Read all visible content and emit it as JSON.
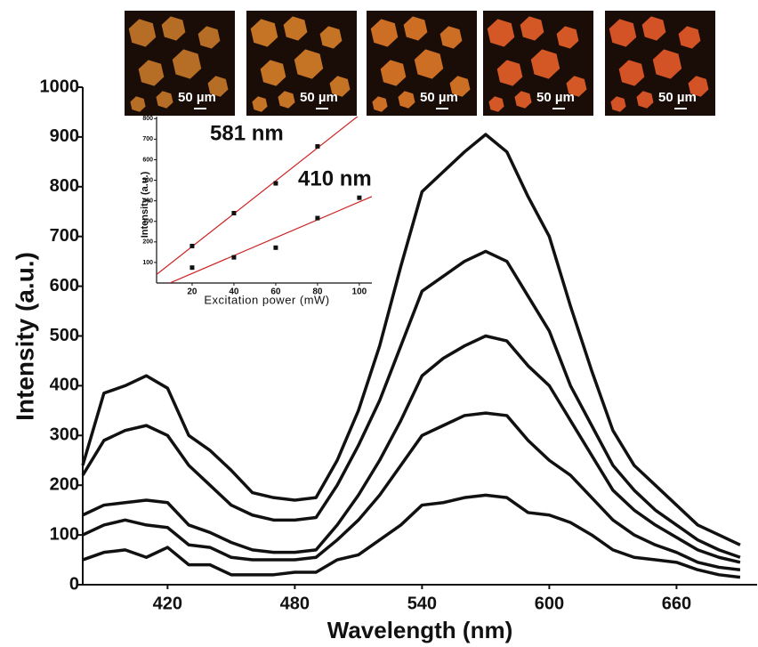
{
  "chart_data": [
    {
      "type": "line",
      "xlabel": "Wavelength (nm)",
      "ylabel": "Intensity (a.u.)",
      "x": [
        380,
        390,
        400,
        410,
        420,
        430,
        440,
        450,
        460,
        470,
        480,
        490,
        500,
        510,
        520,
        530,
        540,
        550,
        560,
        570,
        580,
        590,
        600,
        610,
        620,
        630,
        640,
        650,
        660,
        670,
        680,
        690
      ],
      "series": [
        {
          "color": "#111111",
          "values": [
            240,
            385,
            400,
            420,
            395,
            300,
            270,
            230,
            185,
            175,
            170,
            175,
            250,
            350,
            480,
            640,
            790,
            830,
            870,
            905,
            870,
            780,
            700,
            560,
            430,
            310,
            240,
            200,
            160,
            120,
            100,
            80
          ]
        },
        {
          "color": "#111111",
          "values": [
            220,
            290,
            310,
            320,
            300,
            240,
            200,
            160,
            140,
            130,
            130,
            135,
            200,
            280,
            370,
            480,
            590,
            620,
            650,
            670,
            650,
            580,
            510,
            400,
            320,
            240,
            190,
            150,
            120,
            90,
            70,
            55
          ]
        },
        {
          "color": "#111111",
          "values": [
            140,
            160,
            165,
            170,
            165,
            120,
            105,
            85,
            70,
            65,
            65,
            70,
            120,
            180,
            250,
            330,
            420,
            455,
            480,
            500,
            490,
            440,
            400,
            330,
            260,
            190,
            150,
            120,
            95,
            70,
            55,
            45
          ]
        },
        {
          "color": "#111111",
          "values": [
            100,
            120,
            130,
            120,
            115,
            80,
            75,
            55,
            50,
            50,
            50,
            55,
            90,
            130,
            180,
            240,
            300,
            320,
            340,
            345,
            340,
            290,
            250,
            220,
            175,
            130,
            100,
            80,
            65,
            45,
            35,
            30
          ]
        },
        {
          "color": "#111111",
          "values": [
            50,
            65,
            70,
            55,
            75,
            40,
            40,
            20,
            20,
            20,
            25,
            25,
            50,
            60,
            90,
            120,
            160,
            165,
            175,
            180,
            175,
            145,
            140,
            125,
            100,
            70,
            55,
            50,
            45,
            30,
            20,
            15
          ]
        }
      ],
      "xlim": [
        380,
        698
      ],
      "ylim": [
        0,
        1000
      ],
      "xticks": [
        420,
        480,
        540,
        600,
        660
      ],
      "yticks": [
        0,
        100,
        200,
        300,
        400,
        500,
        600,
        700,
        800,
        900,
        1000
      ]
    },
    {
      "type": "scatter",
      "xlabel": "Excitation power (mW)",
      "ylabel": "Intensity (a.u.)",
      "fit_color": "#cc2222",
      "series": [
        {
          "name": "581 nm",
          "color": "#111111",
          "x": [
            20,
            40,
            60,
            80
          ],
          "values": [
            180,
            340,
            485,
            665
          ]
        },
        {
          "name": "410 nm",
          "color": "#111111",
          "x": [
            20,
            40,
            60,
            80,
            100
          ],
          "values": [
            75,
            125,
            172,
            316,
            415
          ]
        }
      ],
      "xlim": [
        3,
        106
      ],
      "ylim": [
        0,
        810
      ],
      "xticks": [
        20,
        40,
        60,
        80,
        100
      ],
      "yticks": [
        100,
        200,
        300,
        400,
        500,
        600,
        700,
        800
      ]
    }
  ],
  "images": [
    {
      "scale_label": "50 µm"
    },
    {
      "scale_label": "50 µm"
    },
    {
      "scale_label": "50 µm"
    },
    {
      "scale_label": "50 µm"
    },
    {
      "scale_label": "50 µm"
    }
  ]
}
